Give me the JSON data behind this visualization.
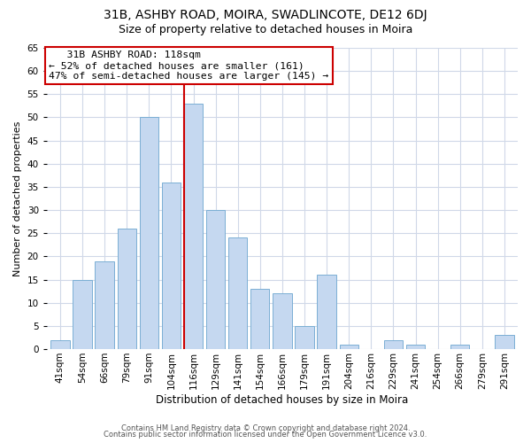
{
  "title": "31B, ASHBY ROAD, MOIRA, SWADLINCOTE, DE12 6DJ",
  "subtitle": "Size of property relative to detached houses in Moira",
  "xlabel": "Distribution of detached houses by size in Moira",
  "ylabel": "Number of detached properties",
  "bar_labels": [
    "41sqm",
    "54sqm",
    "66sqm",
    "79sqm",
    "91sqm",
    "104sqm",
    "116sqm",
    "129sqm",
    "141sqm",
    "154sqm",
    "166sqm",
    "179sqm",
    "191sqm",
    "204sqm",
    "216sqm",
    "229sqm",
    "241sqm",
    "254sqm",
    "266sqm",
    "279sqm",
    "291sqm"
  ],
  "bar_values": [
    2,
    15,
    19,
    26,
    50,
    36,
    53,
    30,
    24,
    13,
    12,
    5,
    16,
    1,
    0,
    2,
    1,
    0,
    1,
    0,
    3
  ],
  "bar_color": "#c5d8f0",
  "bar_edge_color": "#7bafd4",
  "highlight_index": 6,
  "vline_color": "#cc0000",
  "annotation_title": "31B ASHBY ROAD: 118sqm",
  "annotation_line1": "← 52% of detached houses are smaller (161)",
  "annotation_line2": "47% of semi-detached houses are larger (145) →",
  "annotation_box_color": "#ffffff",
  "annotation_box_edge": "#cc0000",
  "ylim": [
    0,
    65
  ],
  "yticks": [
    0,
    5,
    10,
    15,
    20,
    25,
    30,
    35,
    40,
    45,
    50,
    55,
    60,
    65
  ],
  "footer_line1": "Contains HM Land Registry data © Crown copyright and database right 2024.",
  "footer_line2": "Contains public sector information licensed under the Open Government Licence v3.0.",
  "background_color": "#ffffff",
  "grid_color": "#d0d8e8",
  "title_fontsize": 10,
  "subtitle_fontsize": 9,
  "ylabel_fontsize": 8,
  "xlabel_fontsize": 8.5,
  "tick_fontsize": 7.5,
  "footer_fontsize": 6.0
}
